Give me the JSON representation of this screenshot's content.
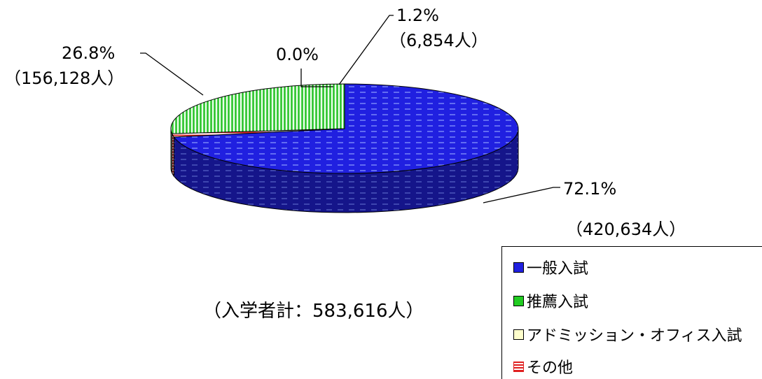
{
  "chart_data": {
    "type": "pie",
    "style": "3d",
    "total_label": "（入学者計：583,616人）",
    "series": [
      {
        "name": "一般入試",
        "percent": 72.1,
        "value": 420634,
        "percent_label": "72.1%",
        "count_label": "（420,634人）",
        "color": "#1f1fd8",
        "pattern": "dashes"
      },
      {
        "name": "推薦入試",
        "percent": 26.8,
        "value": 156128,
        "percent_label": "26.8%",
        "count_label": "（156,128人）",
        "color": "#22cc22",
        "pattern": "vertical-lines"
      },
      {
        "name": "アドミッション・オフィス入試",
        "percent": 0.0,
        "value": 0,
        "percent_label": "0.0%",
        "count_label": "",
        "color": "#ffffcc",
        "pattern": "none"
      },
      {
        "name": "その他",
        "percent": 1.2,
        "value": 6854,
        "percent_label": "1.2%",
        "count_label": "（6,854人）",
        "color": "#e02020",
        "pattern": "horizontal-lines"
      }
    ],
    "legend_position": "bottom-right"
  }
}
